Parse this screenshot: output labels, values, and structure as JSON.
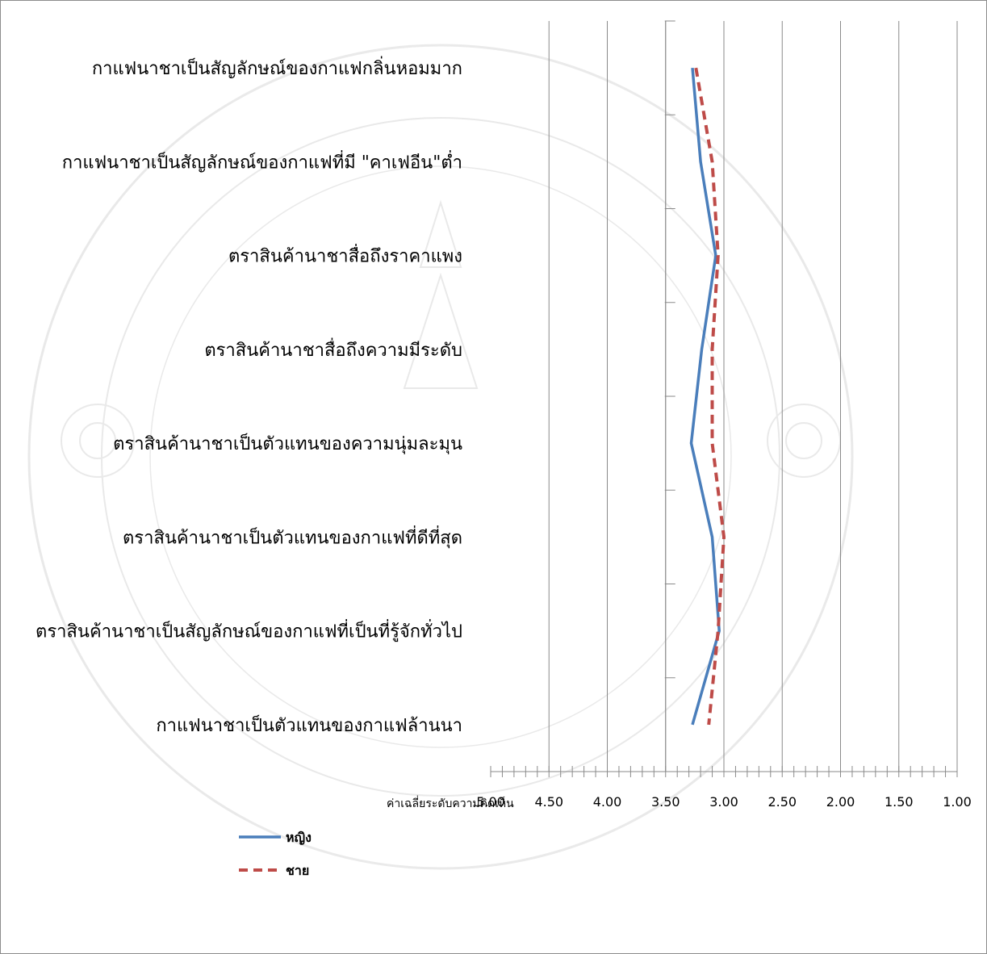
{
  "chart_data": {
    "type": "line",
    "orientation": "horizontal",
    "title": "",
    "xlabel": "ค่าเฉลี่ยระดับความคิดเห็น",
    "ylabel": "",
    "xlim": [
      5.0,
      1.0
    ],
    "x_reversed": true,
    "grid": true,
    "legend_position": "bottom-left",
    "x_ticks": [
      "5.00",
      "4.50",
      "4.00",
      "3.50",
      "3.00",
      "2.50",
      "2.00",
      "1.50",
      "1.00"
    ],
    "categories": [
      "กาแฟนาชาเป็นสัญลักษณ์ของกาแฟกลิ่นหอมมาก",
      "กาแฟนาชาเป็นสัญลักษณ์ของกาแฟที่มี \"คาเฟอีน\"ต่ำ",
      "ตราสินค้านาชาสื่อถึงราคาแพง",
      "ตราสินค้านาชาสื่อถึงความมีระดับ",
      "ตราสินค้านาชาเป็นตัวแทนของความนุ่มละมุน",
      "ตราสินค้านาชาเป็นตัวแทนของกาแฟที่ดีที่สุด",
      "ตราสินค้านาชาเป็นสัญลักษณ์ของกาแฟที่เป็นที่รู้จักทั่วไป",
      "กาแฟนาชาเป็นตัวแทนของกาแฟล้านนา"
    ],
    "series": [
      {
        "name": "หญิง",
        "color": "#4a7ebb",
        "dash": "solid",
        "values": [
          3.27,
          3.2,
          3.07,
          3.19,
          3.28,
          3.1,
          3.04,
          3.27
        ]
      },
      {
        "name": "ชาย",
        "color": "#be4b48",
        "dash": "dashed",
        "values": [
          3.24,
          3.1,
          3.05,
          3.1,
          3.1,
          3.0,
          3.05,
          3.13
        ]
      }
    ]
  }
}
